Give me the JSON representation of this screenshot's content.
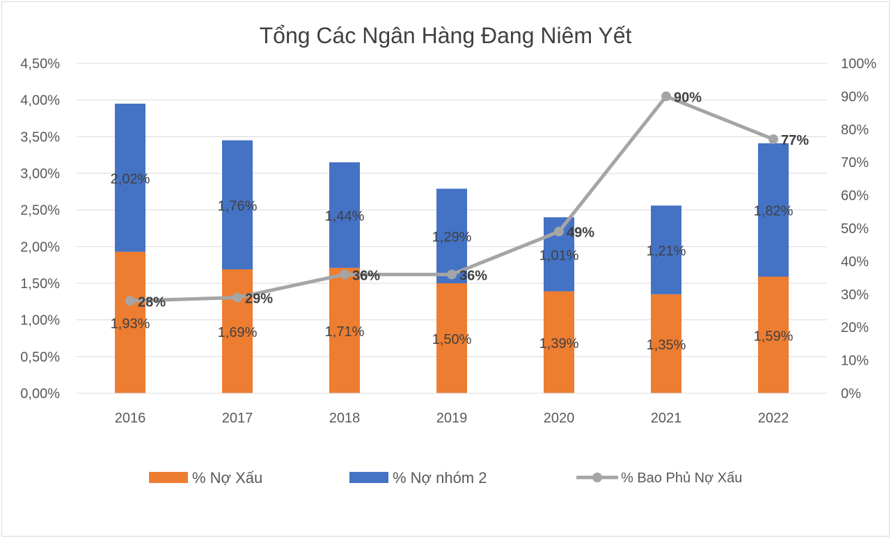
{
  "chart_data": {
    "type": "bar",
    "title": "Tổng Các Ngân Hàng Đang Niêm Yết",
    "categories": [
      "2016",
      "2017",
      "2018",
      "2019",
      "2020",
      "2021",
      "2022"
    ],
    "series": [
      {
        "name": "% Nợ Xấu",
        "kind": "stacked-bar",
        "axis": "left",
        "color": "#ED7D31",
        "values": [
          1.93,
          1.69,
          1.71,
          1.5,
          1.39,
          1.35,
          1.59
        ],
        "labels": [
          "1,93%",
          "1,69%",
          "1,71%",
          "1,50%",
          "1,39%",
          "1,35%",
          "1,59%"
        ]
      },
      {
        "name": "% Nợ nhóm 2",
        "kind": "stacked-bar",
        "axis": "left",
        "color": "#4472C4",
        "values": [
          2.02,
          1.76,
          1.44,
          1.29,
          1.01,
          1.21,
          1.82
        ],
        "labels": [
          "2,02%",
          "1,76%",
          "1,44%",
          "1,29%",
          "1,01%",
          "1,21%",
          "1,82%"
        ]
      },
      {
        "name": "% Bao Phủ Nợ Xấu",
        "kind": "line",
        "axis": "right",
        "color": "#A5A5A5",
        "values": [
          28,
          29,
          36,
          36,
          49,
          90,
          77
        ],
        "labels": [
          "28%",
          "29%",
          "36%",
          "36%",
          "49%",
          "90%",
          "77%"
        ]
      }
    ],
    "y_left": {
      "range": [
        0,
        4.5
      ],
      "ticks": [
        "0,00%",
        "0,50%",
        "1,00%",
        "1,50%",
        "2,00%",
        "2,50%",
        "3,00%",
        "3,50%",
        "4,00%",
        "4,50%"
      ]
    },
    "y_right": {
      "range": [
        0,
        100
      ],
      "ticks": [
        "0%",
        "10%",
        "20%",
        "30%",
        "40%",
        "50%",
        "60%",
        "70%",
        "80%",
        "90%",
        "100%"
      ]
    },
    "grid": true,
    "legend": "bottom"
  }
}
